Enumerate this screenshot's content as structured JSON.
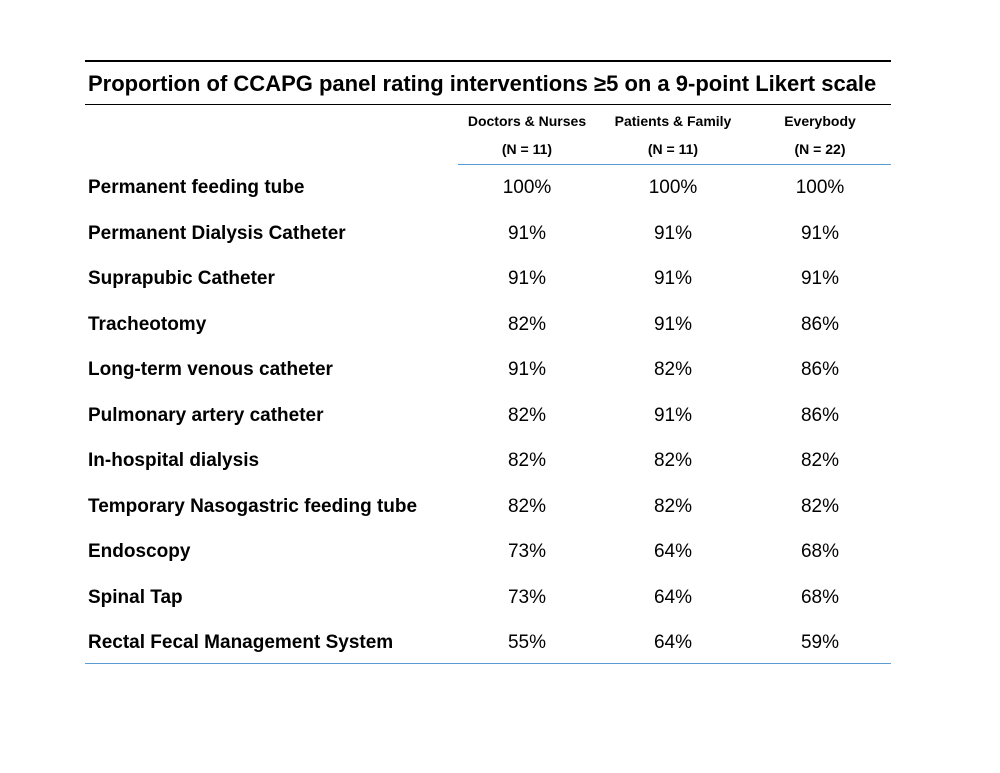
{
  "title": "Proportion of CCAPG panel rating interventions ≥5 on a 9-point Likert scale",
  "columns": [
    {
      "name": "Doctors & Nurses",
      "n": "(N = 11)"
    },
    {
      "name": "Patients & Family",
      "n": "(N = 11)"
    },
    {
      "name": "Everybody",
      "n": "(N = 22)"
    }
  ],
  "rows": [
    {
      "label": "Permanent feeding tube",
      "values": [
        "100%",
        "100%",
        "100%"
      ]
    },
    {
      "label": "Permanent Dialysis Catheter",
      "values": [
        "91%",
        "91%",
        "91%"
      ]
    },
    {
      "label": "Suprapubic Catheter",
      "values": [
        "91%",
        "91%",
        "91%"
      ]
    },
    {
      "label": "Tracheotomy",
      "values": [
        "82%",
        "91%",
        "86%"
      ]
    },
    {
      "label": "Long-term venous catheter",
      "values": [
        "91%",
        "82%",
        "86%"
      ]
    },
    {
      "label": "Pulmonary artery catheter",
      "values": [
        "82%",
        "91%",
        "86%"
      ]
    },
    {
      "label": "In-hospital dialysis",
      "values": [
        "82%",
        "82%",
        "82%"
      ]
    },
    {
      "label": "Temporary Nasogastric feeding tube",
      "values": [
        "82%",
        "82%",
        "82%"
      ]
    },
    {
      "label": "Endoscopy",
      "values": [
        "73%",
        "64%",
        "68%"
      ]
    },
    {
      "label": "Spinal Tap",
      "values": [
        "73%",
        "64%",
        "68%"
      ]
    },
    {
      "label": "Rectal Fecal Management System",
      "values": [
        "55%",
        "64%",
        "59%"
      ]
    }
  ],
  "chart_data": {
    "type": "table",
    "title": "Proportion of CCAPG panel rating interventions ≥5 on a 9-point Likert scale",
    "columns": [
      "Doctors & Nurses (N = 11)",
      "Patients & Family (N = 11)",
      "Everybody (N = 22)"
    ],
    "rows": [
      {
        "label": "Permanent feeding tube",
        "values": [
          100,
          100,
          100
        ]
      },
      {
        "label": "Permanent Dialysis Catheter",
        "values": [
          91,
          91,
          91
        ]
      },
      {
        "label": "Suprapubic Catheter",
        "values": [
          91,
          91,
          91
        ]
      },
      {
        "label": "Tracheotomy",
        "values": [
          82,
          91,
          86
        ]
      },
      {
        "label": "Long-term venous catheter",
        "values": [
          91,
          82,
          86
        ]
      },
      {
        "label": "Pulmonary artery catheter",
        "values": [
          82,
          91,
          86
        ]
      },
      {
        "label": "In-hospital dialysis",
        "values": [
          82,
          82,
          82
        ]
      },
      {
        "label": "Temporary Nasogastric feeding tube",
        "values": [
          82,
          82,
          82
        ]
      },
      {
        "label": "Endoscopy",
        "values": [
          73,
          64,
          68
        ]
      },
      {
        "label": "Spinal Tap",
        "values": [
          73,
          64,
          68
        ]
      },
      {
        "label": "Rectal Fecal Management System",
        "values": [
          55,
          64,
          59
        ]
      }
    ]
  }
}
